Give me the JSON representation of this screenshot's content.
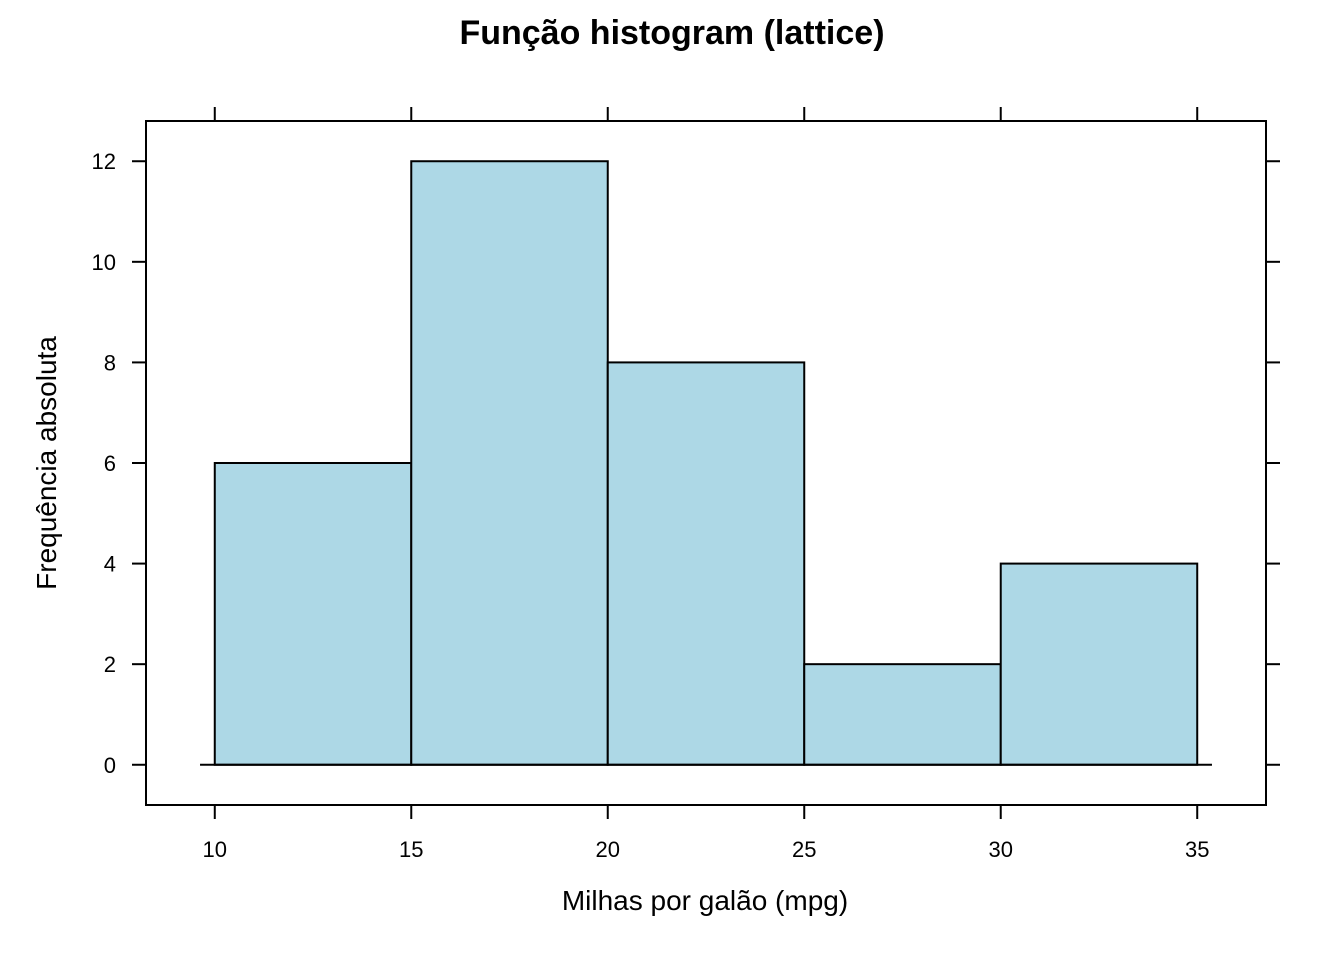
{
  "chart_data": {
    "type": "bar",
    "title": "Função histogram (lattice)",
    "xlabel": "Milhas por galão (mpg)",
    "ylabel": "Frequência absoluta",
    "bins": [
      {
        "from": 10,
        "to": 15,
        "count": 6
      },
      {
        "from": 15,
        "to": 20,
        "count": 12
      },
      {
        "from": 20,
        "to": 25,
        "count": 8
      },
      {
        "from": 25,
        "to": 30,
        "count": 2
      },
      {
        "from": 30,
        "to": 35,
        "count": 4
      }
    ],
    "xticks": [
      "10",
      "15",
      "20",
      "25",
      "30",
      "35"
    ],
    "yticks": [
      "0",
      "2",
      "4",
      "6",
      "8",
      "10",
      "12"
    ],
    "xlim": [
      8.25,
      36.75
    ],
    "ylim": [
      -0.8,
      12.8
    ],
    "bar_color": "#ADD8E6",
    "grid": false
  }
}
